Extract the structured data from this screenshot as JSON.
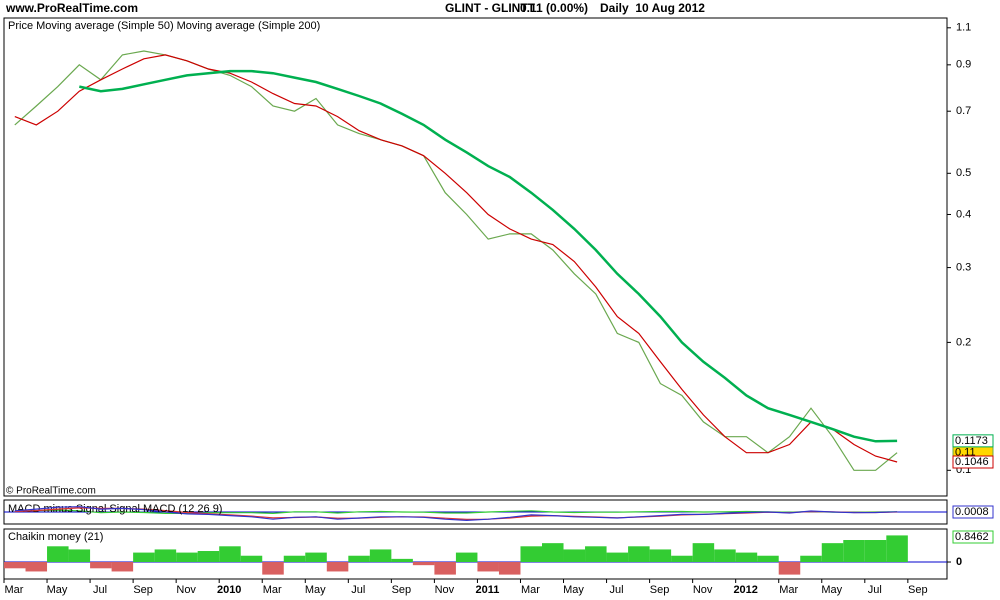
{
  "header": {
    "site": "www.ProRealTime.com",
    "ticker": "GLINT - GLINTT",
    "quote": "0.11 (0.00%)",
    "period": "Daily  10 Aug 2012",
    "copyright": "© ProRealTime.com"
  },
  "chart_data": [
    {
      "type": "line",
      "log_scale": true,
      "categories": [
        "Mar",
        null,
        "May",
        null,
        "Jul",
        null,
        "Sep",
        null,
        "Nov",
        null,
        "2010",
        null,
        "Mar",
        null,
        "May",
        null,
        "Jul",
        null,
        "Sep",
        null,
        "Nov",
        null,
        "2011",
        null,
        "Mar",
        null,
        "May",
        null,
        "Jul",
        null,
        "Sep",
        null,
        "Nov",
        null,
        "2012",
        null,
        "Mar",
        null,
        "May",
        null,
        "Jul",
        null,
        "Sep"
      ],
      "ylim": [
        0.087,
        1.16
      ],
      "yticks": [
        0.1,
        0.2,
        0.3,
        0.4,
        0.5,
        0.7,
        0.9,
        1.1
      ],
      "series": [
        {
          "name": "Price",
          "color": "#6aa84f",
          "values": [
            0.65,
            0.72,
            0.8,
            0.9,
            0.83,
            0.95,
            0.97,
            0.95,
            0.92,
            0.88,
            0.85,
            0.8,
            0.72,
            0.7,
            0.75,
            0.65,
            0.62,
            0.6,
            0.58,
            0.55,
            0.45,
            0.4,
            0.35,
            0.36,
            0.36,
            0.33,
            0.29,
            0.26,
            0.21,
            0.2,
            0.16,
            0.15,
            0.13,
            0.12,
            0.12,
            0.11,
            0.12,
            0.14,
            0.12,
            0.1,
            0.1,
            0.11,
            null
          ]
        },
        {
          "name": "Moving average (Simple 50)",
          "color": "#cc0000",
          "values": [
            0.68,
            0.65,
            0.7,
            0.78,
            0.83,
            0.88,
            0.93,
            0.95,
            0.92,
            0.88,
            0.86,
            0.82,
            0.77,
            0.73,
            0.72,
            0.68,
            0.63,
            0.6,
            0.58,
            0.55,
            0.5,
            0.45,
            0.4,
            0.37,
            0.35,
            0.34,
            0.31,
            0.27,
            0.23,
            0.21,
            0.18,
            0.155,
            0.135,
            0.12,
            0.11,
            0.11,
            0.115,
            0.13,
            0.125,
            0.115,
            0.108,
            0.1046,
            null
          ]
        },
        {
          "name": "Moving average (Simple 200)",
          "color": "#00b050",
          "values": [
            null,
            null,
            null,
            0.8,
            0.78,
            0.79,
            0.81,
            0.83,
            0.85,
            0.86,
            0.87,
            0.87,
            0.86,
            0.84,
            0.82,
            0.79,
            0.76,
            0.73,
            0.69,
            0.65,
            0.6,
            0.56,
            0.52,
            0.49,
            0.45,
            0.41,
            0.37,
            0.33,
            0.29,
            0.26,
            0.23,
            0.2,
            0.18,
            0.165,
            0.15,
            0.14,
            0.135,
            0.13,
            0.125,
            0.12,
            0.117,
            0.1173,
            null
          ]
        }
      ]
    },
    {
      "type": "line",
      "ylim": [
        -0.05,
        0.05
      ],
      "series": [
        {
          "name": "MACD minus Signal",
          "color": "#33cc33",
          "values": [
            0.003,
            0.006,
            0.008,
            0.005,
            -0.003,
            0,
            -0.002,
            -0.006,
            -0.006,
            -0.003,
            -0.003,
            -0.003,
            -0.006,
            0.001,
            0.001,
            -0.004,
            0.001,
            0.002,
            0,
            -0.001,
            -0.004,
            -0.004,
            0,
            0.003,
            0.005,
            0,
            -0.002,
            -0.001,
            -0.001,
            0.001,
            0.002,
            0.002,
            0,
            0.001,
            0.002,
            0.001,
            -0.001,
            0.002,
            -0.001,
            -0.001,
            0,
            0.0008,
            null
          ]
        },
        {
          "name": "Signal",
          "color": "#dd3333",
          "values": [
            0.002,
            0.006,
            0.012,
            0.017,
            0.015,
            0.015,
            0.012,
            0.006,
            -0.002,
            -0.007,
            -0.012,
            -0.017,
            -0.024,
            -0.023,
            -0.021,
            -0.026,
            -0.026,
            -0.022,
            -0.02,
            -0.021,
            -0.026,
            -0.031,
            -0.03,
            -0.025,
            -0.017,
            -0.015,
            -0.018,
            -0.021,
            -0.024,
            -0.021,
            -0.017,
            -0.012,
            -0.01,
            -0.007,
            -0.004,
            -0.001,
            -0.003,
            0.002,
            0.001,
            -0.002,
            -0.002,
            0,
            null
          ]
        },
        {
          "name": "MACD (12 26 9)",
          "color": "#3333cc",
          "values": [
            0.005,
            0.012,
            0.02,
            0.022,
            0.012,
            0.015,
            0.01,
            0,
            -0.008,
            -0.01,
            -0.015,
            -0.02,
            -0.03,
            -0.022,
            -0.02,
            -0.03,
            -0.025,
            -0.02,
            -0.02,
            -0.022,
            -0.03,
            -0.035,
            -0.03,
            -0.022,
            -0.012,
            -0.015,
            -0.02,
            -0.022,
            -0.025,
            -0.02,
            -0.015,
            -0.01,
            -0.01,
            -0.006,
            -0.002,
            0,
            -0.004,
            0.004,
            0,
            -0.003,
            -0.002,
            0.0008,
            null
          ]
        }
      ]
    },
    {
      "type": "bar",
      "title": "Chaikin money (21)",
      "color": "#33cc33",
      "negative_color": "#d96060",
      "ylim": [
        -0.54,
        1.05
      ],
      "yticks": [
        0
      ],
      "values": [
        -0.2,
        -0.3,
        0.5,
        0.4,
        -0.2,
        -0.3,
        0.3,
        0.4,
        0.3,
        0.35,
        0.5,
        0.2,
        -0.4,
        0.2,
        0.3,
        -0.3,
        0.2,
        0.4,
        0.1,
        -0.1,
        -0.4,
        0.3,
        -0.3,
        -0.4,
        0.5,
        0.6,
        0.4,
        0.5,
        0.3,
        0.5,
        0.4,
        0.2,
        0.6,
        0.4,
        0.3,
        0.2,
        -0.4,
        0.2,
        0.6,
        0.7,
        0.7,
        0.8462,
        null
      ]
    }
  ]
}
